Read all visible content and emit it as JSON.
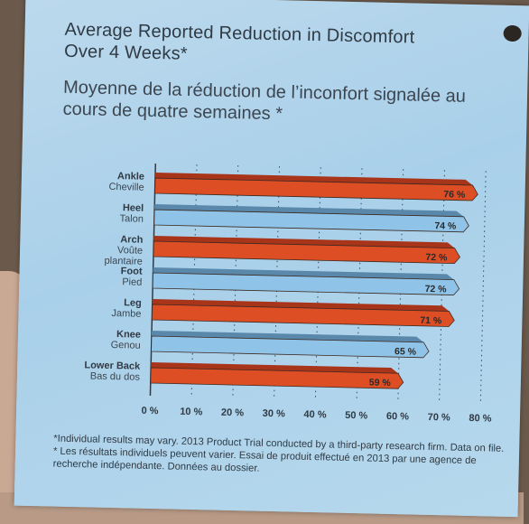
{
  "title_en": "Average Reported Reduction in Discomfort Over 4 Weeks*",
  "title_fr": "Moyenne de la réduction de l’inconfort signalée au cours de quatre semaines *",
  "footnote": "*Individual results may vary. 2013 Product Trial conducted by a third-party research firm. Data on file. * Les résultats individuels peuvent varier. Essai de produit effectué en 2013 par une agence de recherche indépendante. Données au dossier.",
  "colors": {
    "orange": "#dd4e24",
    "blue": "#8fc3e8",
    "axis": "#2f3a44"
  },
  "chart_data": {
    "type": "bar",
    "orientation": "horizontal",
    "categories": [
      {
        "en": "Ankle",
        "fr": "Cheville"
      },
      {
        "en": "Heel",
        "fr": "Talon"
      },
      {
        "en": "Arch",
        "fr": "Voûte plantaire"
      },
      {
        "en": "Foot",
        "fr": "Pied"
      },
      {
        "en": "Leg",
        "fr": "Jambe"
      },
      {
        "en": "Knee",
        "fr": "Genou"
      },
      {
        "en": "Lower Back",
        "fr": "Bas du dos"
      }
    ],
    "values": [
      76,
      74,
      72,
      72,
      71,
      65,
      59
    ],
    "value_labels": [
      "76 %",
      "74 %",
      "72 %",
      "72 %",
      "71 %",
      "65 %",
      "59 %"
    ],
    "bar_colors": [
      "orange",
      "blue",
      "orange",
      "blue",
      "orange",
      "blue",
      "orange"
    ],
    "xlim": [
      0,
      80
    ],
    "xticks": [
      "0 %",
      "10 %",
      "20 %",
      "30 %",
      "40 %",
      "50 %",
      "60 %",
      "70 %",
      "80 %"
    ],
    "grid": "vertical dotted"
  }
}
